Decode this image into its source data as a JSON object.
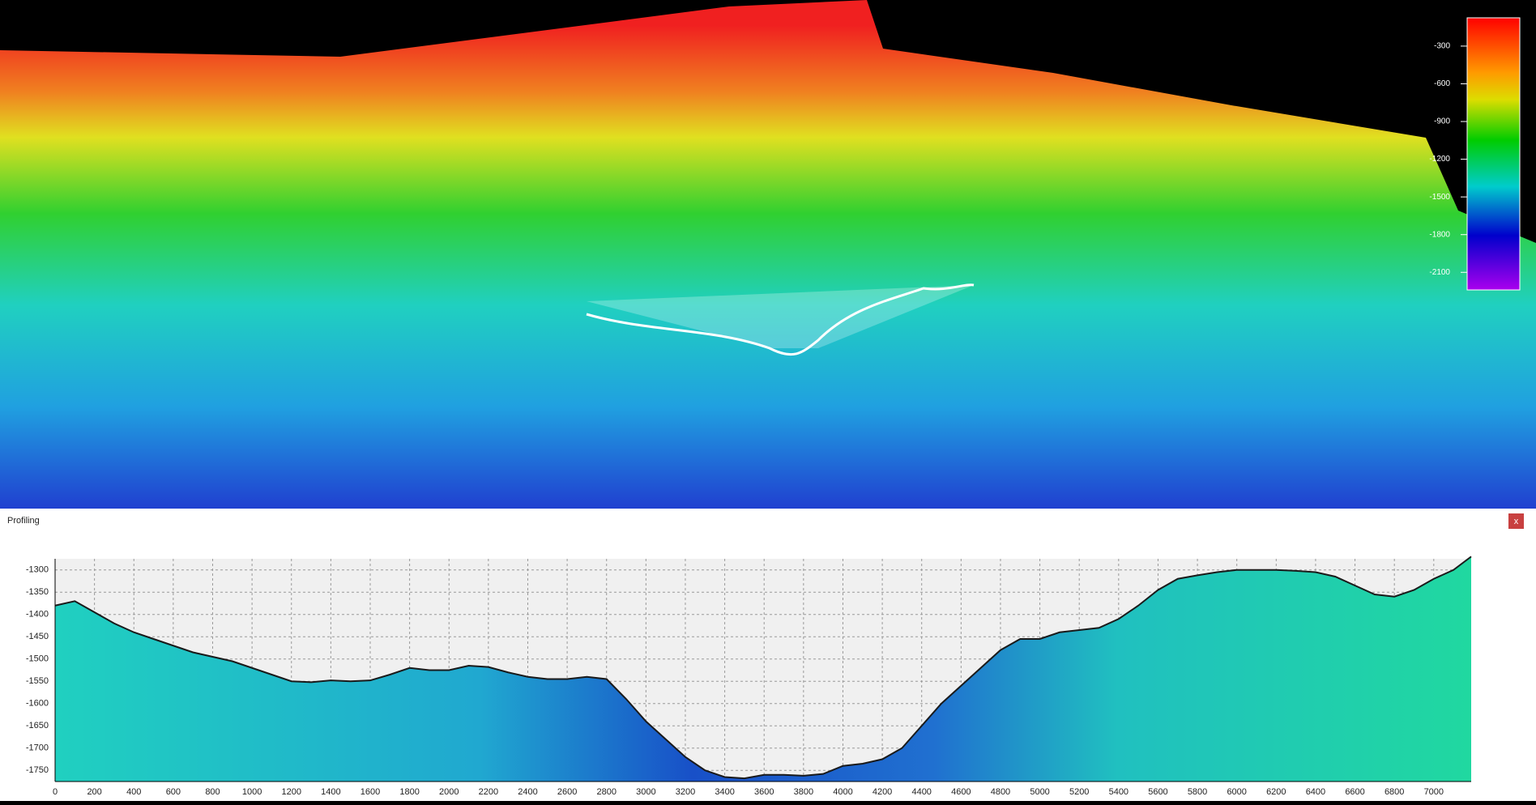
{
  "depth_scale": {
    "lim": [
      -75,
      -2240
    ],
    "ticks": [
      -300,
      -600,
      -900,
      -1200,
      -1500,
      -1800,
      -2100
    ]
  },
  "panel": {
    "title": "Profiling",
    "close": "x"
  },
  "chart_data": {
    "type": "area",
    "line_color": "#1a1a1a",
    "grid": true,
    "xlim": [
      0,
      7190
    ],
    "ylim": [
      -1775,
      -1275
    ],
    "xticks": [
      0,
      200,
      400,
      600,
      800,
      1000,
      1200,
      1400,
      1600,
      1800,
      2000,
      2200,
      2400,
      2600,
      2800,
      3000,
      3200,
      3400,
      3600,
      3800,
      4000,
      4200,
      4400,
      4600,
      4800,
      5000,
      5200,
      5400,
      5600,
      5800,
      6000,
      6200,
      6400,
      6600,
      6800,
      7000
    ],
    "yticks": [
      -1300,
      -1350,
      -1400,
      -1450,
      -1500,
      -1550,
      -1600,
      -1650,
      -1700,
      -1750
    ],
    "x": [
      0,
      100,
      200,
      300,
      400,
      500,
      600,
      700,
      800,
      900,
      1000,
      1100,
      1200,
      1300,
      1400,
      1500,
      1600,
      1700,
      1800,
      1900,
      2000,
      2100,
      2200,
      2300,
      2400,
      2500,
      2600,
      2700,
      2800,
      2900,
      3000,
      3100,
      3200,
      3300,
      3400,
      3500,
      3600,
      3700,
      3800,
      3900,
      4000,
      4100,
      4200,
      4300,
      4400,
      4500,
      4600,
      4700,
      4800,
      4900,
      5000,
      5100,
      5200,
      5300,
      5400,
      5500,
      5600,
      5700,
      5800,
      5900,
      6000,
      6100,
      6200,
      6300,
      6400,
      6500,
      6600,
      6700,
      6800,
      6900,
      7000,
      7100,
      7190
    ],
    "values": [
      -1380,
      -1370,
      -1395,
      -1420,
      -1440,
      -1455,
      -1470,
      -1485,
      -1495,
      -1505,
      -1520,
      -1535,
      -1550,
      -1552,
      -1548,
      -1550,
      -1548,
      -1535,
      -1520,
      -1525,
      -1525,
      -1515,
      -1518,
      -1530,
      -1540,
      -1545,
      -1545,
      -1540,
      -1545,
      -1590,
      -1640,
      -1680,
      -1720,
      -1750,
      -1765,
      -1768,
      -1760,
      -1760,
      -1762,
      -1758,
      -1740,
      -1735,
      -1725,
      -1700,
      -1650,
      -1600,
      -1560,
      -1520,
      -1480,
      -1455,
      -1455,
      -1440,
      -1435,
      -1430,
      -1410,
      -1380,
      -1345,
      -1320,
      -1312,
      -1305,
      -1300,
      -1300,
      -1300,
      -1302,
      -1305,
      -1315,
      -1335,
      -1355,
      -1360,
      -1345,
      -1320,
      -1300,
      -1270
    ]
  }
}
